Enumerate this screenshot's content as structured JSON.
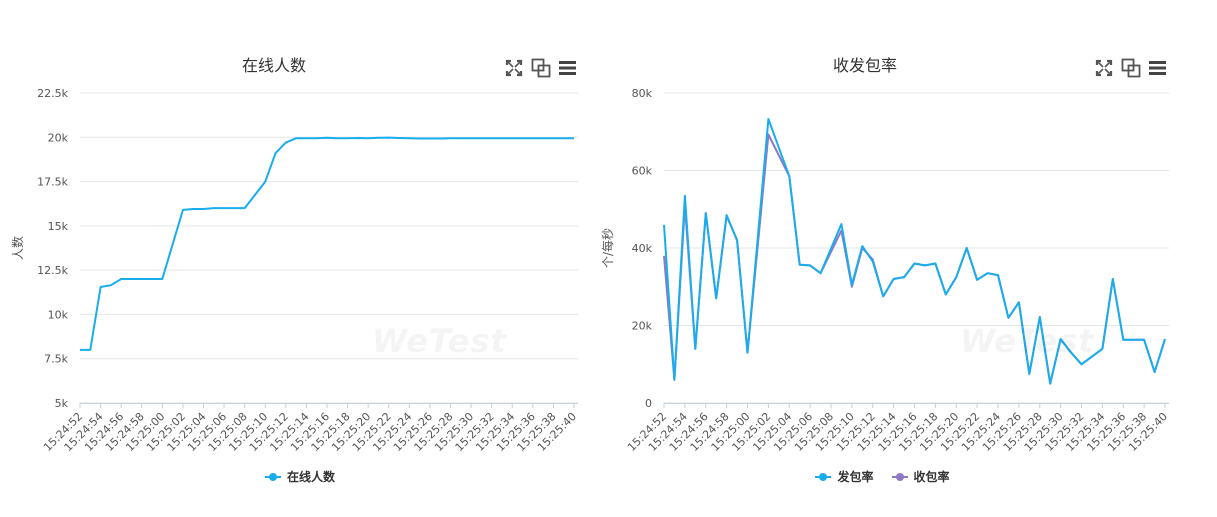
{
  "charts": [
    {
      "id": "online",
      "title": "在线人数",
      "watermark": "WeTest",
      "ylabel": "人数",
      "toolbar": {
        "fullscreen_icon": "fullscreen-icon",
        "compare_icon": "compare-icon",
        "menu_icon": "menu-icon"
      },
      "legend": [
        {
          "label": "在线人数",
          "color": "#1aadee"
        }
      ]
    },
    {
      "id": "packets",
      "title": "收发包率",
      "watermark": "WeTest",
      "ylabel": "个/每秒",
      "toolbar": {
        "fullscreen_icon": "fullscreen-icon",
        "compare_icon": "compare-icon",
        "menu_icon": "menu-icon"
      },
      "legend": [
        {
          "label": "发包率",
          "color": "#1aadee"
        },
        {
          "label": "收包率",
          "color": "#8e79c6"
        }
      ]
    }
  ],
  "chart_data": [
    {
      "type": "line",
      "title": "在线人数",
      "ylabel": "人数",
      "ylim": [
        5000,
        22500
      ],
      "yticks": [
        "5k",
        "7.5k",
        "10k",
        "12.5k",
        "15k",
        "17.5k",
        "20k",
        "22.5k"
      ],
      "xticks": [
        "15:24:52",
        "15:24:54",
        "15:24:56",
        "15:24:58",
        "15:25:00",
        "15:25:02",
        "15:25:04",
        "15:25:06",
        "15:25:08",
        "15:25:10",
        "15:25:12",
        "15:25:14",
        "15:25:16",
        "15:25:18",
        "15:25:20",
        "15:25:22",
        "15:25:24",
        "15:25:26",
        "15:25:28",
        "15:25:30",
        "15:25:32",
        "15:25:34",
        "15:25:36",
        "15:25:38",
        "15:25:40"
      ],
      "grid": true,
      "legend_position": "bottom",
      "series": [
        {
          "name": "在线人数",
          "color": "#1aadee",
          "x": [
            "15:24:52",
            "15:24:53",
            "15:24:54",
            "15:24:55",
            "15:24:56",
            "15:24:57",
            "15:24:58",
            "15:24:59",
            "15:25:00",
            "15:25:01",
            "15:25:02",
            "15:25:03",
            "15:25:04",
            "15:25:05",
            "15:25:06",
            "15:25:07",
            "15:25:08",
            "15:25:09",
            "15:25:10",
            "15:25:11",
            "15:25:12",
            "15:25:13",
            "15:25:14",
            "15:25:15",
            "15:25:16",
            "15:25:17",
            "15:25:18",
            "15:25:19",
            "15:25:20",
            "15:25:21",
            "15:25:22",
            "15:25:23",
            "15:25:24",
            "15:25:25",
            "15:25:26",
            "15:25:27",
            "15:25:28",
            "15:25:29",
            "15:25:30",
            "15:25:31",
            "15:25:32",
            "15:25:33",
            "15:25:34",
            "15:25:35",
            "15:25:36",
            "15:25:37",
            "15:25:38",
            "15:25:39",
            "15:25:40"
          ],
          "values": [
            8000,
            8000,
            11550,
            11650,
            12000,
            12000,
            12000,
            12000,
            12000,
            13950,
            15900,
            15950,
            15950,
            16000,
            16000,
            16000,
            16000,
            16750,
            17500,
            19100,
            19700,
            19950,
            19950,
            19950,
            19970,
            19950,
            19950,
            19960,
            19950,
            19970,
            19980,
            19960,
            19940,
            19930,
            19930,
            19930,
            19950,
            19940,
            19940,
            19950,
            19950,
            19940,
            19940,
            19940,
            19940,
            19940,
            19940,
            19940,
            19940
          ]
        }
      ]
    },
    {
      "type": "line",
      "title": "收发包率",
      "ylabel": "个/每秒",
      "ylim": [
        0,
        80000
      ],
      "yticks": [
        "0",
        "20k",
        "40k",
        "60k",
        "80k"
      ],
      "xticks": [
        "15:24:52",
        "15:24:54",
        "15:24:56",
        "15:24:58",
        "15:25:00",
        "15:25:02",
        "15:25:04",
        "15:25:06",
        "15:25:08",
        "15:25:10",
        "15:25:12",
        "15:25:14",
        "15:25:16",
        "15:25:18",
        "15:25:20",
        "15:25:22",
        "15:25:24",
        "15:25:26",
        "15:25:28",
        "15:25:30",
        "15:25:32",
        "15:25:34",
        "15:25:36",
        "15:25:38",
        "15:25:40"
      ],
      "grid": true,
      "legend_position": "bottom",
      "series": [
        {
          "name": "发包率",
          "color": "#1aadee",
          "x": [
            "15:24:52",
            "15:24:53",
            "15:24:54",
            "15:24:55",
            "15:24:56",
            "15:24:57",
            "15:24:58",
            "15:24:59",
            "15:25:00",
            "15:25:02",
            "15:25:04",
            "15:25:05",
            "15:25:06",
            "15:25:07",
            "15:25:09",
            "15:25:10",
            "15:25:11",
            "15:25:12",
            "15:25:13",
            "15:25:14",
            "15:25:15",
            "15:25:16",
            "15:25:17",
            "15:25:18",
            "15:25:19",
            "15:25:20",
            "15:25:21",
            "15:25:22",
            "15:25:23",
            "15:25:24",
            "15:25:25",
            "15:25:26",
            "15:25:27",
            "15:25:28",
            "15:25:29",
            "15:25:30",
            "15:25:31",
            "15:25:32",
            "15:25:34",
            "15:25:35",
            "15:25:36",
            "15:25:37",
            "15:25:38",
            "15:25:39",
            "15:25:40"
          ],
          "values": [
            46000,
            6000,
            53500,
            14000,
            49000,
            27000,
            48500,
            42000,
            13000,
            73300,
            58500,
            35700,
            35500,
            33500,
            46200,
            30500,
            40500,
            36500,
            27500,
            32000,
            32500,
            36000,
            35500,
            36000,
            28000,
            32500,
            40000,
            31800,
            33500,
            33000,
            22000,
            26000,
            7500,
            22200,
            5000,
            16500,
            13000,
            10000,
            14000,
            32000,
            16300,
            16300,
            16300,
            8000,
            16500
          ]
        },
        {
          "name": "收包率",
          "color": "#8e79c6",
          "x": [
            "15:24:52",
            "15:24:53",
            "15:24:54",
            "15:24:55",
            "15:24:56",
            "15:24:57",
            "15:24:58",
            "15:24:59",
            "15:25:00",
            "15:25:02",
            "15:25:04",
            "15:25:05",
            "15:25:06",
            "15:25:07",
            "15:25:09",
            "15:25:10",
            "15:25:11",
            "15:25:12",
            "15:25:13",
            "15:25:14",
            "15:25:15",
            "15:25:16",
            "15:25:17",
            "15:25:18",
            "15:25:19",
            "15:25:20",
            "15:25:21",
            "15:25:22",
            "15:25:23",
            "15:25:24",
            "15:25:25",
            "15:25:26",
            "15:25:27",
            "15:25:28",
            "15:25:29",
            "15:25:30",
            "15:25:31",
            "15:25:32",
            "15:25:34",
            "15:25:35",
            "15:25:36",
            "15:25:37",
            "15:25:38",
            "15:25:39",
            "15:25:40"
          ],
          "values": [
            38000,
            6000,
            51000,
            14000,
            49000,
            27000,
            48300,
            42000,
            13000,
            69300,
            58500,
            35700,
            35500,
            33500,
            44500,
            30000,
            40000,
            37000,
            27500,
            32000,
            32500,
            36000,
            35500,
            36000,
            28000,
            32500,
            40000,
            31800,
            33500,
            33000,
            22000,
            26000,
            7500,
            22200,
            5000,
            16500,
            13000,
            10000,
            14000,
            32000,
            16300,
            16300,
            16300,
            8000,
            16500
          ]
        }
      ]
    }
  ]
}
